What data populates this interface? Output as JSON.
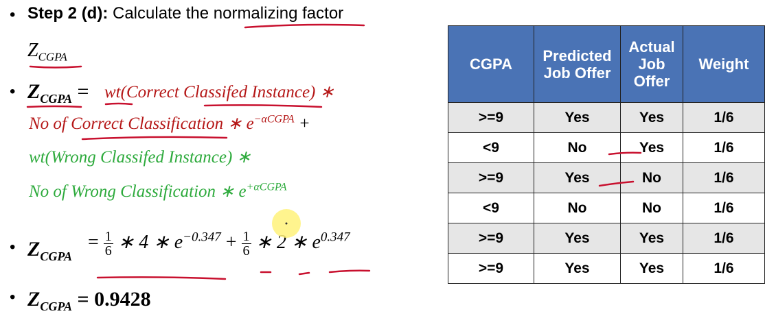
{
  "step": {
    "label": "Step 2 (d):",
    "text": "Calculate the normalizing factor",
    "symbol": "Z",
    "subscript": "CGPA"
  },
  "formula": {
    "lhs_symbol": "Z",
    "lhs_subscript": "CGPA",
    "line1": "wt(Correct Classifed Instance) ∗",
    "line2": "No of Correct Classification ∗ e",
    "line2_sup": "−αCGPA",
    "line2_tail": " +",
    "line3": "wt(Wrong Classifed Instance) ∗",
    "line4": "No of Wrong Classification ∗ e",
    "line4_sup": "+αCGPA"
  },
  "calc": {
    "lhs_symbol": "Z",
    "lhs_subscript": "CGPA",
    "frac1_num": "1",
    "frac1_den": "6",
    "part1": "∗ 4 ∗ e",
    "part1_sup": "−0.347",
    "plus": "+",
    "frac2_num": "1",
    "frac2_den": "6",
    "part2": "∗ 2 ∗ e",
    "part2_sup": "0.347"
  },
  "result": {
    "lhs_symbol": "Z",
    "lhs_subscript": "CGPA",
    "value": "= 0.9428"
  },
  "table": {
    "headers": [
      "CGPA",
      "Predicted Job Offer",
      "Actual Job Offer",
      "Weight"
    ],
    "rows": [
      [
        ">=9",
        "Yes",
        "Yes",
        "1/6"
      ],
      [
        "<9",
        "No",
        "Yes",
        "1/6"
      ],
      [
        ">=9",
        "Yes",
        "No",
        "1/6"
      ],
      [
        "<9",
        "No",
        "No",
        "1/6"
      ],
      [
        ">=9",
        "Yes",
        "Yes",
        "1/6"
      ],
      [
        ">=9",
        "Yes",
        "Yes",
        "1/6"
      ]
    ]
  },
  "colors": {
    "red": "#b51717",
    "green": "#2daa3c",
    "header_blue": "#4a73b5",
    "highlight": "#fff27a"
  }
}
